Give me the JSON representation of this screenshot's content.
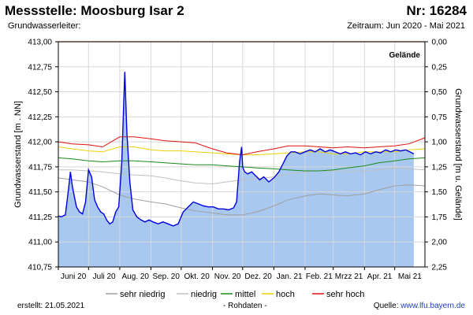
{
  "header": {
    "title": "Messstelle: Moosburg Isar 2",
    "station_nr": "Nr: 16284",
    "aquifer_label": "Grundwasserleiter:",
    "period": "Zeitraum: Jun 2020 - Mai 2021"
  },
  "footer": {
    "created": "erstellt:  21.05.2021",
    "raw_data": "- Rohdaten -",
    "source_prefix": "Quelle: ",
    "source_link": "www.lfu.bayern.de"
  },
  "chart_data": {
    "type": "area",
    "ylabel": "Grundwasserstand [m . NN]",
    "y2label": "Grundwasserstand [m u. Gelände]",
    "ylim": [
      410.75,
      413.0
    ],
    "yticks": [
      "413,00",
      "412,75",
      "412,50",
      "412,25",
      "412,00",
      "411,75",
      "411,50",
      "411,25",
      "411,00",
      "410,75"
    ],
    "y2ticks": [
      "0,00",
      "0,25",
      "0,50",
      "0,75",
      "1,00",
      "1,25",
      "1,50",
      "1,75",
      "2,00",
      "2,25"
    ],
    "xlim": [
      "2020-06-01",
      "2021-05-31"
    ],
    "xticks": [
      "Juni 20",
      "Juli 20",
      "Aug. 20",
      "Sep. 20",
      "Okt. 20",
      "Nov. 20",
      "Dez. 20",
      "Jan. 21",
      "Feb. 21",
      "Mrzz 21",
      "Apr. 21",
      "Mai 21"
    ],
    "grid": true,
    "terrain": {
      "label": "Gelände",
      "value": 413.0,
      "color": "#e07020"
    },
    "legend": {
      "placement": "bottom"
    },
    "series": [
      {
        "name": "sehr niedrig",
        "color": "#a0a0a0",
        "x": [
          "2020-06-01",
          "2020-06-15",
          "2020-07-01",
          "2020-07-15",
          "2020-08-01",
          "2020-08-15",
          "2020-09-01",
          "2020-09-15",
          "2020-10-01",
          "2020-10-15",
          "2020-11-01",
          "2020-11-15",
          "2020-12-01",
          "2020-12-15",
          "2021-01-01",
          "2021-01-15",
          "2021-02-01",
          "2021-02-15",
          "2021-03-01",
          "2021-03-15",
          "2021-04-01",
          "2021-04-15",
          "2021-05-01",
          "2021-05-15",
          "2021-05-31"
        ],
        "y": [
          411.64,
          411.62,
          411.6,
          411.55,
          411.47,
          411.43,
          411.4,
          411.38,
          411.34,
          411.31,
          411.29,
          411.27,
          411.27,
          411.3,
          411.36,
          411.42,
          411.46,
          411.48,
          411.47,
          411.46,
          411.48,
          411.52,
          411.56,
          411.57,
          411.56
        ]
      },
      {
        "name": "niedrig",
        "color": "#c0c0c0",
        "x": [
          "2020-06-01",
          "2020-06-15",
          "2020-07-01",
          "2020-07-15",
          "2020-08-01",
          "2020-08-15",
          "2020-09-01",
          "2020-09-15",
          "2020-10-01",
          "2020-10-15",
          "2020-11-01",
          "2020-11-15",
          "2020-12-01",
          "2020-12-15",
          "2021-01-01",
          "2021-01-15",
          "2021-02-01",
          "2021-02-15",
          "2021-03-01",
          "2021-03-15",
          "2021-04-01",
          "2021-04-15",
          "2021-05-01",
          "2021-05-15",
          "2021-05-31"
        ],
        "y": [
          411.72,
          411.72,
          411.71,
          411.7,
          411.68,
          411.67,
          411.66,
          411.64,
          411.61,
          411.59,
          411.58,
          411.6,
          411.62,
          411.63,
          411.65,
          411.68,
          411.7,
          411.71,
          411.71,
          411.7,
          411.71,
          411.72,
          411.74,
          411.73,
          411.72
        ]
      },
      {
        "name": "mittel",
        "color": "#1a8a1a",
        "x": [
          "2020-06-01",
          "2020-06-15",
          "2020-07-01",
          "2020-07-15",
          "2020-08-01",
          "2020-08-15",
          "2020-09-01",
          "2020-09-15",
          "2020-10-01",
          "2020-10-15",
          "2020-11-01",
          "2020-11-15",
          "2020-12-01",
          "2020-12-15",
          "2021-01-01",
          "2021-01-15",
          "2021-02-01",
          "2021-02-15",
          "2021-03-01",
          "2021-03-15",
          "2021-04-01",
          "2021-04-15",
          "2021-05-01",
          "2021-05-15",
          "2021-05-31"
        ],
        "y": [
          411.84,
          411.83,
          411.81,
          411.8,
          411.81,
          411.81,
          411.8,
          411.79,
          411.78,
          411.77,
          411.77,
          411.76,
          411.75,
          411.74,
          411.73,
          411.72,
          411.71,
          411.71,
          411.72,
          411.74,
          411.76,
          411.79,
          411.81,
          411.83,
          411.84
        ]
      },
      {
        "name": "hoch",
        "color": "#f0d000",
        "x": [
          "2020-06-01",
          "2020-06-15",
          "2020-07-01",
          "2020-07-15",
          "2020-08-01",
          "2020-08-15",
          "2020-09-01",
          "2020-09-15",
          "2020-10-01",
          "2020-10-15",
          "2020-11-01",
          "2020-11-15",
          "2020-12-01",
          "2020-12-15",
          "2021-01-01",
          "2021-01-15",
          "2021-02-01",
          "2021-02-15",
          "2021-03-01",
          "2021-03-15",
          "2021-04-01",
          "2021-04-15",
          "2021-05-01",
          "2021-05-15",
          "2021-05-31"
        ],
        "y": [
          411.95,
          411.93,
          411.91,
          411.9,
          411.95,
          411.95,
          411.92,
          411.91,
          411.91,
          411.9,
          411.89,
          411.88,
          411.87,
          411.87,
          411.88,
          411.89,
          411.9,
          411.9,
          411.88,
          411.88,
          411.9,
          411.9,
          411.9,
          411.92,
          411.93
        ]
      },
      {
        "name": "sehr hoch",
        "color": "#e01010",
        "x": [
          "2020-06-01",
          "2020-06-15",
          "2020-07-01",
          "2020-07-15",
          "2020-08-01",
          "2020-08-15",
          "2020-09-01",
          "2020-09-15",
          "2020-10-01",
          "2020-10-15",
          "2020-11-01",
          "2020-11-15",
          "2020-12-01",
          "2020-12-15",
          "2021-01-01",
          "2021-01-15",
          "2021-02-01",
          "2021-02-15",
          "2021-03-01",
          "2021-03-15",
          "2021-04-01",
          "2021-04-15",
          "2021-05-01",
          "2021-05-15",
          "2021-05-31"
        ],
        "y": [
          412.0,
          411.98,
          411.97,
          411.95,
          412.05,
          412.05,
          412.03,
          412.01,
          412.0,
          411.99,
          411.93,
          411.89,
          411.87,
          411.9,
          411.93,
          411.96,
          411.96,
          411.95,
          411.94,
          411.95,
          411.94,
          411.95,
          411.96,
          411.98,
          412.04
        ]
      },
      {
        "name": "Grundwasserstand",
        "color": "#0000dd",
        "fill": "#a8c8f0",
        "x": [
          "2020-06-01",
          "2020-06-04",
          "2020-06-08",
          "2020-06-11",
          "2020-06-13",
          "2020-06-15",
          "2020-06-17",
          "2020-06-19",
          "2020-06-22",
          "2020-06-25",
          "2020-06-28",
          "2020-07-01",
          "2020-07-04",
          "2020-07-07",
          "2020-07-10",
          "2020-07-13",
          "2020-07-16",
          "2020-07-19",
          "2020-07-22",
          "2020-07-25",
          "2020-07-28",
          "2020-07-31",
          "2020-08-01",
          "2020-08-03",
          "2020-08-05",
          "2020-08-06",
          "2020-08-08",
          "2020-08-11",
          "2020-08-14",
          "2020-08-18",
          "2020-08-22",
          "2020-08-26",
          "2020-08-30",
          "2020-09-03",
          "2020-09-08",
          "2020-09-13",
          "2020-09-18",
          "2020-09-23",
          "2020-09-28",
          "2020-10-03",
          "2020-10-08",
          "2020-10-13",
          "2020-10-18",
          "2020-10-23",
          "2020-10-28",
          "2020-11-02",
          "2020-11-07",
          "2020-11-12",
          "2020-11-17",
          "2020-11-22",
          "2020-11-25",
          "2020-11-28",
          "2020-11-30",
          "2020-12-01",
          "2020-12-03",
          "2020-12-06",
          "2020-12-10",
          "2020-12-14",
          "2020-12-18",
          "2020-12-22",
          "2020-12-27",
          "2021-01-01",
          "2021-01-06",
          "2021-01-10",
          "2021-01-14",
          "2021-01-18",
          "2021-01-22",
          "2021-01-27",
          "2021-02-01",
          "2021-02-06",
          "2021-02-11",
          "2021-02-16",
          "2021-02-21",
          "2021-02-26",
          "2021-03-03",
          "2021-03-08",
          "2021-03-13",
          "2021-03-18",
          "2021-03-23",
          "2021-03-28",
          "2021-04-02",
          "2021-04-07",
          "2021-04-12",
          "2021-04-17",
          "2021-04-22",
          "2021-04-27",
          "2021-05-02",
          "2021-05-07",
          "2021-05-12",
          "2021-05-16",
          "2021-05-20"
        ],
        "y": [
          411.26,
          411.25,
          411.27,
          411.52,
          411.7,
          411.55,
          411.45,
          411.35,
          411.3,
          411.28,
          411.4,
          411.72,
          411.65,
          411.42,
          411.35,
          411.3,
          411.28,
          411.22,
          411.18,
          411.2,
          411.3,
          411.35,
          411.5,
          411.8,
          412.4,
          412.7,
          412.1,
          411.6,
          411.32,
          411.25,
          411.22,
          411.2,
          411.22,
          411.2,
          411.18,
          411.2,
          411.18,
          411.16,
          411.18,
          411.3,
          411.35,
          411.4,
          411.38,
          411.36,
          411.35,
          411.35,
          411.33,
          411.33,
          411.32,
          411.34,
          411.4,
          411.8,
          411.95,
          411.75,
          411.7,
          411.68,
          411.7,
          411.66,
          411.62,
          411.65,
          411.6,
          411.64,
          411.7,
          411.78,
          411.86,
          411.9,
          411.9,
          411.88,
          411.9,
          411.92,
          411.9,
          411.93,
          411.9,
          411.92,
          411.9,
          411.88,
          411.9,
          411.88,
          411.89,
          411.87,
          411.9,
          411.88,
          411.9,
          411.89,
          411.92,
          411.9,
          411.92,
          411.91,
          411.92,
          411.9,
          411.88
        ]
      }
    ]
  }
}
